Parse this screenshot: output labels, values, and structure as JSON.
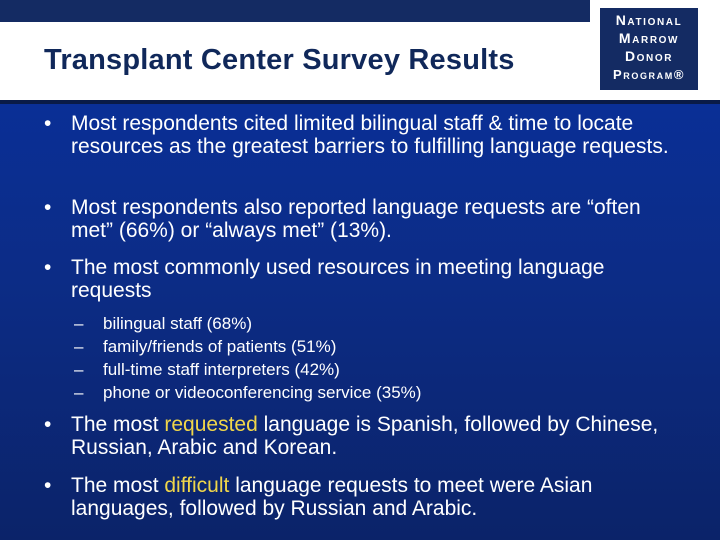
{
  "slide": {
    "title": "Transplant Center Survey Results"
  },
  "logo": {
    "line1": "National",
    "line2": "Marrow",
    "line3": "Donor",
    "line4": "Program®"
  },
  "bullets": [
    {
      "marker": "•",
      "text": "Most respondents cited limited bilingual staff & time to locate resources as the greatest barriers to fulfilling language requests."
    },
    {
      "marker": "•",
      "text": "Most respondents also reported language requests are “often met” (66%) or “always met” (13%)."
    },
    {
      "marker": "•",
      "text": "The most commonly used resources in meeting language requests"
    },
    {
      "marker": "•",
      "prefix": "The most ",
      "highlight": "requested",
      "suffix": " language is Spanish, followed by Chinese, Russian, Arabic and Korean."
    },
    {
      "marker": "•",
      "prefix": "The most ",
      "highlight": "difficult",
      "suffix": " language requests to meet were Asian languages, followed by Russian and Arabic."
    }
  ],
  "sub_items": [
    {
      "marker": "–",
      "text": "bilingual staff (68%)"
    },
    {
      "marker": "–",
      "text": "family/friends of patients (51%)"
    },
    {
      "marker": "–",
      "text": "full-time staff interpreters (42%)"
    },
    {
      "marker": "–",
      "text": "phone or videoconferencing service (35%)"
    }
  ],
  "colors": {
    "title": "#10285a",
    "header_bg": "#ffffff",
    "body_bg": "#0c2c86",
    "logo_bg": "#142b63",
    "highlight": "#f0d64a",
    "text": "#ffffff"
  }
}
